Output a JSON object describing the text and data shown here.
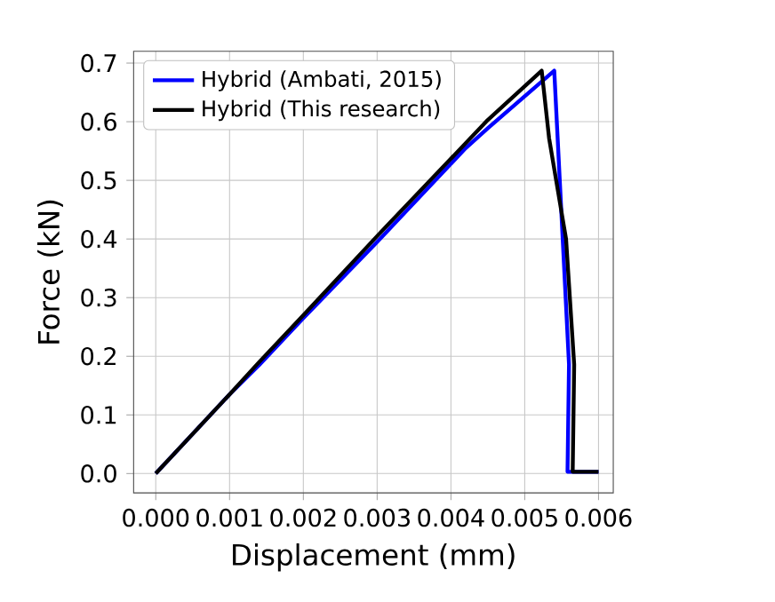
{
  "chart_data": {
    "type": "line",
    "xlabel": "Displacement (mm)",
    "ylabel": "Force (kN)",
    "xlim": [
      -0.0003,
      0.0062
    ],
    "ylim": [
      -0.033,
      0.72
    ],
    "xticks": [
      {
        "value": 0,
        "label": "0.000"
      },
      {
        "value": 0.001,
        "label": "0.001"
      },
      {
        "value": 0.002,
        "label": "0.002"
      },
      {
        "value": 0.003,
        "label": "0.003"
      },
      {
        "value": 0.004,
        "label": "0.004"
      },
      {
        "value": 0.005,
        "label": "0.005"
      },
      {
        "value": 0.006,
        "label": "0.006"
      }
    ],
    "yticks": [
      {
        "value": 0,
        "label": "0.0"
      },
      {
        "value": 0.1,
        "label": "0.1"
      },
      {
        "value": 0.2,
        "label": "0.2"
      },
      {
        "value": 0.3,
        "label": "0.3"
      },
      {
        "value": 0.4,
        "label": "0.4"
      },
      {
        "value": 0.5,
        "label": "0.5"
      },
      {
        "value": 0.6,
        "label": "0.6"
      },
      {
        "value": 0.7,
        "label": "0.7"
      }
    ],
    "grid": true,
    "legend": "top left",
    "line_style": "solid",
    "marker": "none",
    "series": [
      {
        "name": "Hybrid (Ambati, 2015)",
        "color": "#0000ff",
        "x": [
          0,
          0.001,
          0.0014,
          0.002,
          0.003,
          0.0042,
          0.0045,
          0.0054,
          0.0056,
          0.00558,
          0.006
        ],
        "values": [
          0,
          0.135,
          0.185,
          0.265,
          0.395,
          0.555,
          0.589,
          0.687,
          0.186,
          0.003,
          0.003
        ]
      },
      {
        "name": "Hybrid (This research)",
        "color": "#000000",
        "x": [
          0,
          0.001,
          0.0014,
          0.002,
          0.003,
          0.0045,
          0.00523,
          0.00533,
          0.00556,
          0.00567,
          0.00565,
          0.006
        ],
        "values": [
          0,
          0.135,
          0.19,
          0.27,
          0.405,
          0.603,
          0.687,
          0.572,
          0.4,
          0.186,
          0.003,
          0.003
        ]
      }
    ]
  }
}
